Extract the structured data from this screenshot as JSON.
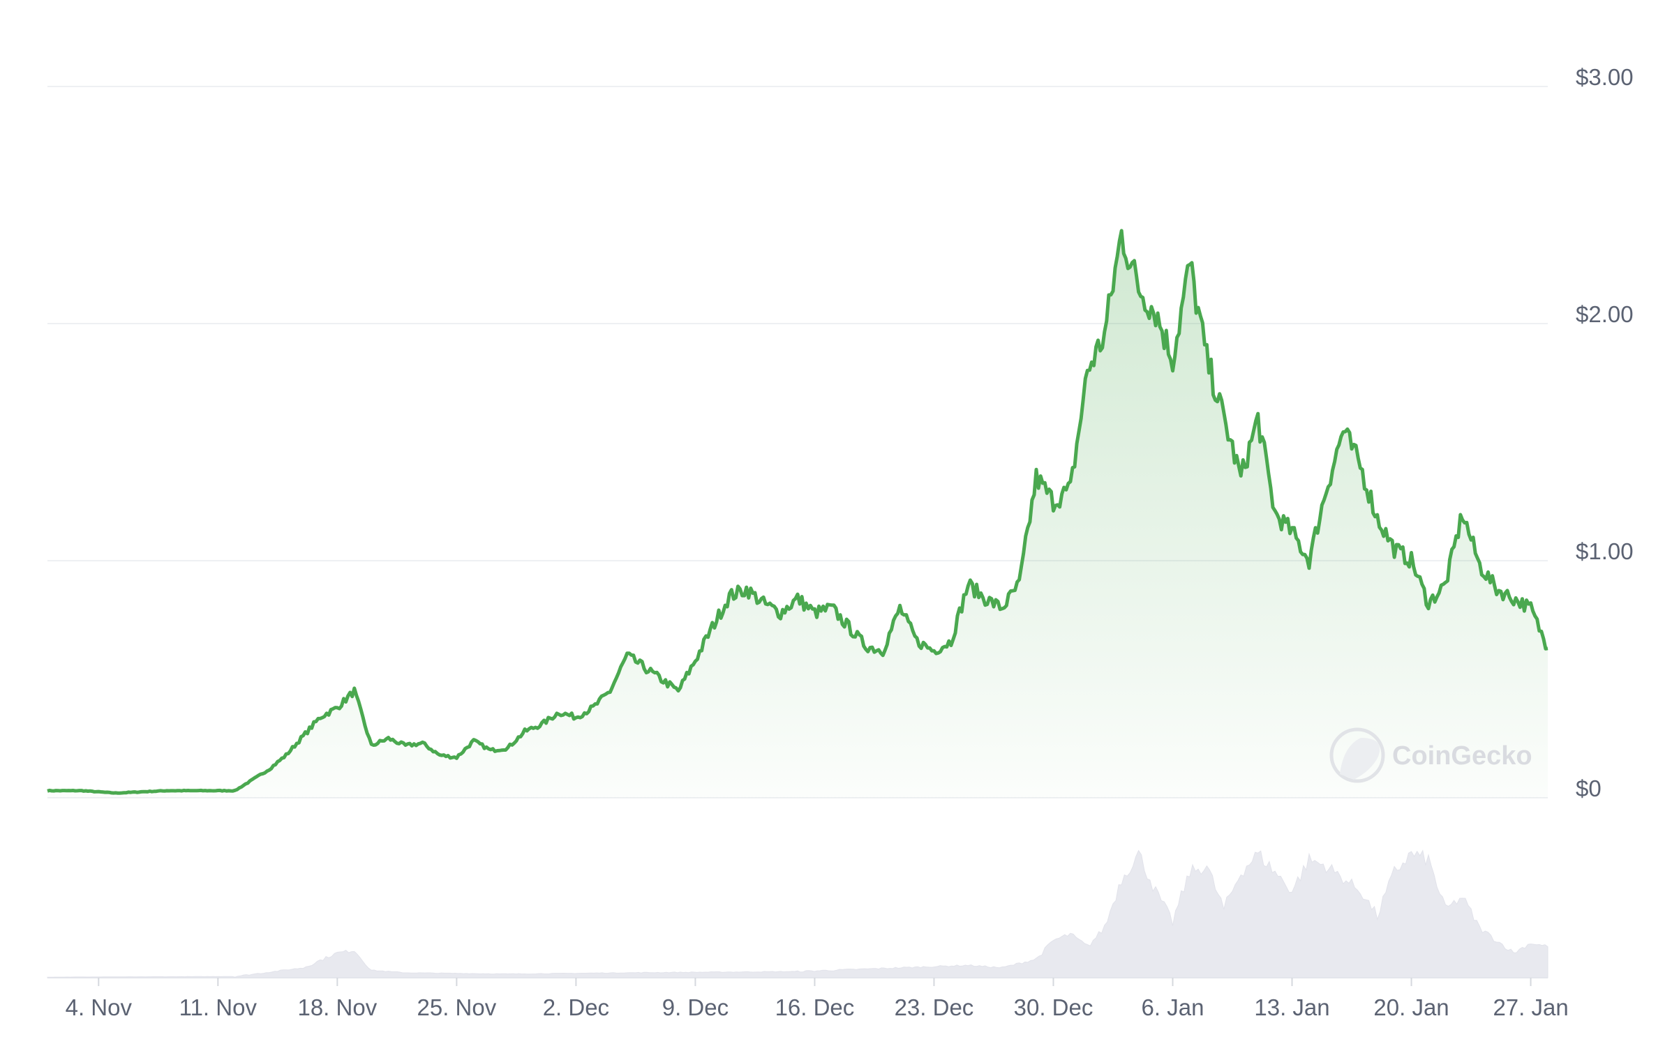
{
  "chart_data": {
    "type": "line",
    "title": "",
    "xlabel": "",
    "ylabel": "",
    "y_axis_position": "right",
    "ylim": [
      0,
      3.0
    ],
    "y_ticks": [
      {
        "value": 0,
        "label": "$0"
      },
      {
        "value": 1,
        "label": "$1.00"
      },
      {
        "value": 2,
        "label": "$2.00"
      },
      {
        "value": 3,
        "label": "$3.00"
      }
    ],
    "x_range": [
      "2024-11-01",
      "2025-01-28"
    ],
    "x_ticks": [
      {
        "date": "2024-11-04",
        "label": "4. Nov"
      },
      {
        "date": "2024-11-11",
        "label": "11. Nov"
      },
      {
        "date": "2024-11-18",
        "label": "18. Nov"
      },
      {
        "date": "2024-11-25",
        "label": "25. Nov"
      },
      {
        "date": "2024-12-02",
        "label": "2. Dec"
      },
      {
        "date": "2024-12-09",
        "label": "9. Dec"
      },
      {
        "date": "2024-12-16",
        "label": "16. Dec"
      },
      {
        "date": "2024-12-23",
        "label": "23. Dec"
      },
      {
        "date": "2024-12-30",
        "label": "30. Dec"
      },
      {
        "date": "2025-01-06",
        "label": "6. Jan"
      },
      {
        "date": "2025-01-13",
        "label": "13. Jan"
      },
      {
        "date": "2025-01-20",
        "label": "20. Jan"
      },
      {
        "date": "2025-01-27",
        "label": "27. Jan"
      }
    ],
    "grid": true,
    "line_color": "#4aa84f",
    "volume_color": "#e8e9ef",
    "price_series": {
      "x": [
        "2024-11-01",
        "2024-11-03",
        "2024-11-05",
        "2024-11-08",
        "2024-11-10",
        "2024-11-12",
        "2024-11-14",
        "2024-11-15",
        "2024-11-16",
        "2024-11-17",
        "2024-11-18",
        "2024-11-19",
        "2024-11-20",
        "2024-11-21",
        "2024-11-22",
        "2024-11-23",
        "2024-11-24",
        "2024-11-25",
        "2024-11-26",
        "2024-11-27",
        "2024-11-28",
        "2024-11-29",
        "2024-11-30",
        "2024-12-01",
        "2024-12-02",
        "2024-12-03",
        "2024-12-04",
        "2024-12-05",
        "2024-12-06",
        "2024-12-07",
        "2024-12-08",
        "2024-12-09",
        "2024-12-10",
        "2024-12-11",
        "2024-12-12",
        "2024-12-13",
        "2024-12-14",
        "2024-12-15",
        "2024-12-16",
        "2024-12-17",
        "2024-12-18",
        "2024-12-19",
        "2024-12-20",
        "2024-12-21",
        "2024-12-22",
        "2024-12-23",
        "2024-12-24",
        "2024-12-25",
        "2024-12-26",
        "2024-12-27",
        "2024-12-28",
        "2024-12-29",
        "2024-12-30",
        "2024-12-31",
        "2025-01-01",
        "2025-01-02",
        "2025-01-03",
        "2025-01-04",
        "2025-01-05",
        "2025-01-06",
        "2025-01-07",
        "2025-01-08",
        "2025-01-09",
        "2025-01-10",
        "2025-01-11",
        "2025-01-12",
        "2025-01-13",
        "2025-01-14",
        "2025-01-15",
        "2025-01-16",
        "2025-01-17",
        "2025-01-18",
        "2025-01-19",
        "2025-01-20",
        "2025-01-21",
        "2025-01-22",
        "2025-01-23",
        "2025-01-24",
        "2025-01-25",
        "2025-01-26",
        "2025-01-27",
        "2025-01-28"
      ],
      "values": [
        0.03,
        0.03,
        0.02,
        0.03,
        0.03,
        0.03,
        0.12,
        0.18,
        0.26,
        0.34,
        0.38,
        0.45,
        0.22,
        0.25,
        0.22,
        0.23,
        0.18,
        0.17,
        0.24,
        0.2,
        0.21,
        0.28,
        0.31,
        0.36,
        0.34,
        0.38,
        0.45,
        0.6,
        0.55,
        0.5,
        0.45,
        0.58,
        0.72,
        0.85,
        0.88,
        0.82,
        0.78,
        0.84,
        0.78,
        0.8,
        0.72,
        0.64,
        0.62,
        0.8,
        0.66,
        0.62,
        0.66,
        0.9,
        0.84,
        0.8,
        0.9,
        1.35,
        1.25,
        1.3,
        1.8,
        1.95,
        2.38,
        2.15,
        2.05,
        1.85,
        2.25,
        1.85,
        1.6,
        1.35,
        1.6,
        1.2,
        1.12,
        1.0,
        1.3,
        1.55,
        1.4,
        1.18,
        1.05,
        1.0,
        0.82,
        0.9,
        1.2,
        0.98,
        0.88,
        0.84,
        0.8,
        0.63
      ]
    },
    "volume_series": {
      "x": [
        "2024-11-01",
        "2024-11-12",
        "2024-11-16",
        "2024-11-18",
        "2024-11-19",
        "2024-11-20",
        "2024-11-22",
        "2024-11-28",
        "2024-12-05",
        "2024-12-15",
        "2024-12-25",
        "2024-12-27",
        "2024-12-29",
        "2024-12-30",
        "2024-12-31",
        "2025-01-01",
        "2025-01-02",
        "2025-01-03",
        "2025-01-04",
        "2025-01-05",
        "2025-01-06",
        "2025-01-07",
        "2025-01-08",
        "2025-01-09",
        "2025-01-10",
        "2025-01-11",
        "2025-01-12",
        "2025-01-13",
        "2025-01-14",
        "2025-01-15",
        "2025-01-16",
        "2025-01-17",
        "2025-01-18",
        "2025-01-19",
        "2025-01-20",
        "2025-01-21",
        "2025-01-22",
        "2025-01-23",
        "2025-01-24",
        "2025-01-25",
        "2025-01-26",
        "2025-01-27",
        "2025-01-28"
      ],
      "values": [
        0.005,
        0.01,
        0.08,
        0.2,
        0.22,
        0.06,
        0.04,
        0.03,
        0.04,
        0.05,
        0.1,
        0.08,
        0.15,
        0.3,
        0.35,
        0.25,
        0.4,
        0.8,
        1.0,
        0.7,
        0.45,
        0.85,
        0.9,
        0.55,
        0.85,
        1.0,
        0.85,
        0.7,
        0.95,
        0.9,
        0.8,
        0.7,
        0.5,
        0.85,
        1.0,
        0.95,
        0.55,
        0.65,
        0.4,
        0.3,
        0.2,
        0.28,
        0.25
      ]
    },
    "watermark": "CoinGecko"
  }
}
